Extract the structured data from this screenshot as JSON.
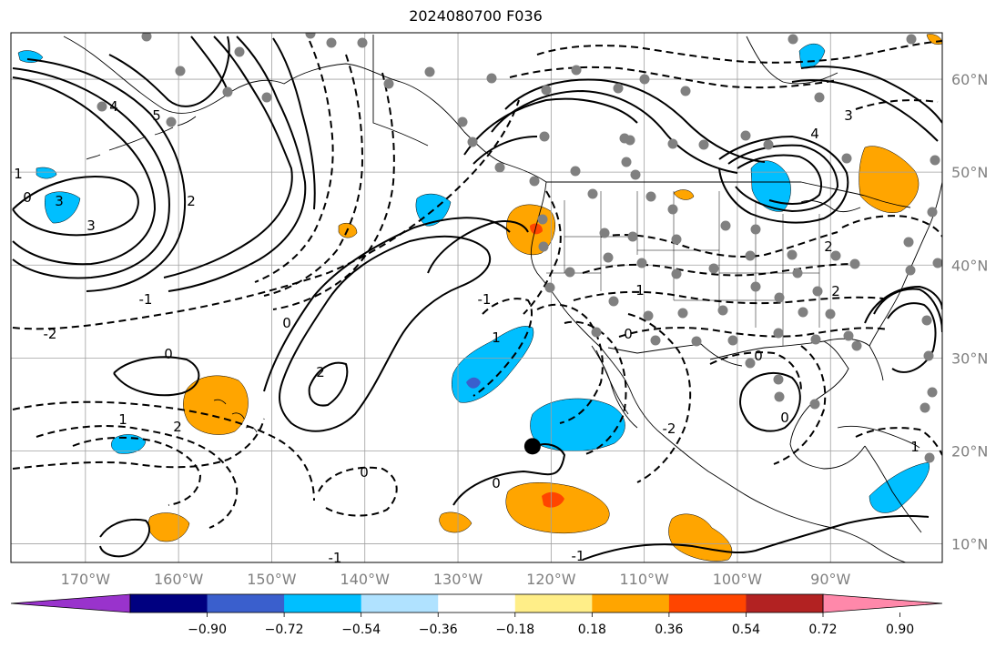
{
  "title": "2024080700 F036",
  "map": {
    "extent": {
      "lon_min": -178,
      "lon_max": -78,
      "lat_min": 8,
      "lat_max": 65
    },
    "lon_ticks": [
      -170,
      -160,
      -150,
      -140,
      -130,
      -120,
      -110,
      -100,
      -90
    ],
    "lon_labels": [
      "170°W",
      "160°W",
      "150°W",
      "140°W",
      "130°W",
      "120°W",
      "110°W",
      "100°W",
      "90°W"
    ],
    "lat_ticks": [
      10,
      20,
      30,
      40,
      50,
      60
    ],
    "lat_labels": [
      "10°N",
      "20°N",
      "30°N",
      "40°N",
      "50°N",
      "60°N"
    ],
    "grid": true,
    "projection": "plate-carree",
    "contour_labels": [
      "0",
      "1",
      "2",
      "3",
      "4",
      "5",
      "-1",
      "-2",
      "0",
      "1",
      "2",
      "3",
      "0",
      "-1",
      "0",
      "1",
      "2",
      "0",
      "-1",
      "-2",
      "0",
      "1",
      "2",
      "3",
      "4",
      "0",
      "2",
      "0",
      "-1",
      "1"
    ],
    "marker": {
      "lon": -122,
      "lat": 20.5,
      "color": "#000000"
    }
  },
  "colorbar": {
    "colors": [
      "#9933cc",
      "#000080",
      "#3a5fcd",
      "#00bfff",
      "#b0e2ff",
      "#ffffff",
      "#ffee88",
      "#ffa500",
      "#ff4500",
      "#b22222",
      "#ff88aa"
    ],
    "tick_labels": [
      "−0.90",
      "−0.72",
      "−0.54",
      "−0.36",
      "−0.18",
      "0.18",
      "0.36",
      "0.54",
      "0.72",
      "0.90"
    ]
  },
  "colors": {
    "station": "#808080",
    "grid": "#a0a0a0",
    "contour": "#000000"
  }
}
